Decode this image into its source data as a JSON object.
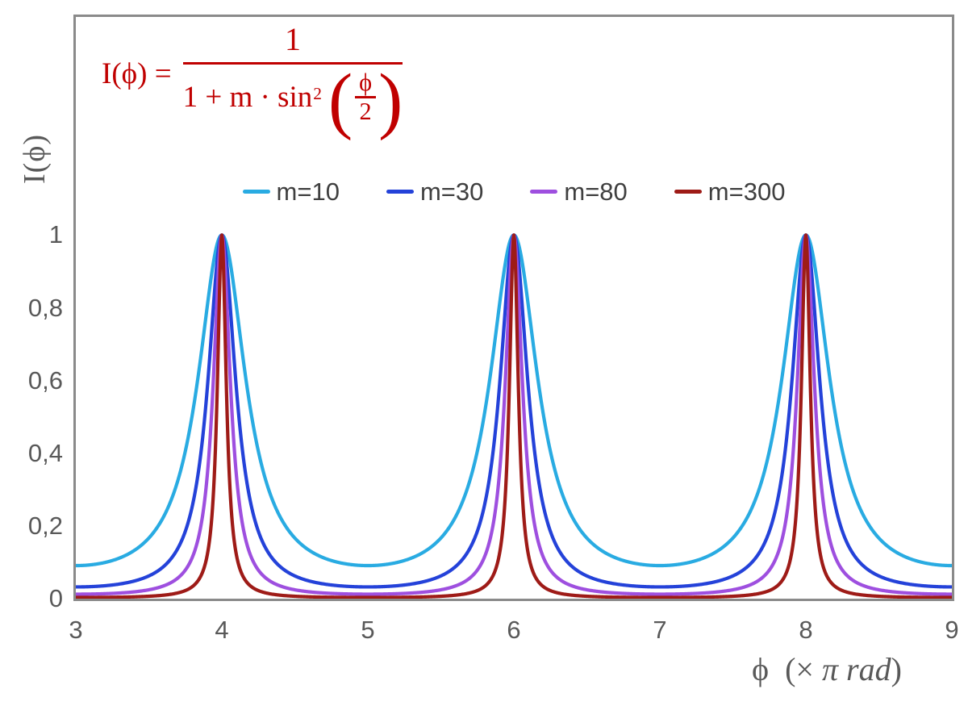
{
  "formula": {
    "lhs_func": "I(ϕ)",
    "equals": "=",
    "numerator": "1",
    "den_text": "1 + m · sin",
    "den_exponent": "2",
    "paren_open": "(",
    "paren_close": ")",
    "inner_numerator": "ϕ",
    "inner_denominator": "2",
    "color": "#C00000"
  },
  "x_axis": {
    "title_symbol": "ϕ",
    "title_open": "(× ",
    "title_italic": "π rad",
    "title_close": ")"
  },
  "chart_data": {
    "type": "line",
    "title": "",
    "formula_text": "I(ϕ) = 1 / (1 + m·sin²(ϕ/2))",
    "xlabel": "ϕ (× π rad)",
    "ylabel": "I(ϕ)",
    "xlim": [
      3,
      9
    ],
    "ylim": [
      0,
      1.6
    ],
    "x_unit": "π rad (x values are multiples of π radians)",
    "xticks": [
      "3",
      "4",
      "5",
      "6",
      "7",
      "8",
      "9"
    ],
    "yticks": [
      {
        "value": 0,
        "label": "0"
      },
      {
        "value": 0.2,
        "label": "0,2"
      },
      {
        "value": 0.4,
        "label": "0,4"
      },
      {
        "value": 0.6,
        "label": "0,6"
      },
      {
        "value": 0.8,
        "label": "0,8"
      },
      {
        "value": 1,
        "label": "1"
      }
    ],
    "grid": false,
    "legend_position": "top-center",
    "series": [
      {
        "name": "m=10",
        "m": 10,
        "color": "#29ABE2",
        "peak_value": 1,
        "min_value": 0.0909
      },
      {
        "name": "m=30",
        "m": 30,
        "color": "#2442D9",
        "peak_value": 1,
        "min_value": 0.0323
      },
      {
        "name": "m=80",
        "m": 80,
        "color": "#9E4FDF",
        "peak_value": 1,
        "min_value": 0.0123
      },
      {
        "name": "m=300",
        "m": 300,
        "color": "#9E1B17",
        "peak_value": 1,
        "min_value": 0.0033
      }
    ],
    "peaks_at_x": [
      4,
      6,
      8
    ],
    "sample_step": 0.004,
    "line_width": 4.2,
    "frame_color": "#8A8A8A",
    "tick_label_color": "#595959",
    "legend_text_color": "#3F3F3F"
  }
}
